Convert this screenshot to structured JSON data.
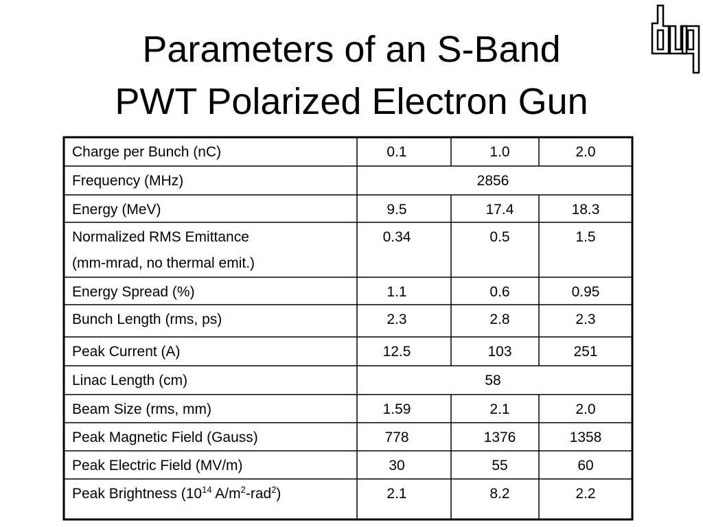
{
  "header": {
    "title_lines": [
      "Parameters of an S-Band",
      "PWT Polarized Electron Gun"
    ]
  },
  "table": {
    "rows": [
      {
        "label": [
          "Charge per Bunch (nC)"
        ],
        "values": [
          "0.1",
          "1.0",
          "2.0"
        ]
      },
      {
        "label": [
          "Frequency (MHz)"
        ],
        "values": [
          "2856"
        ]
      },
      {
        "label": [
          "Energy (MeV)"
        ],
        "values": [
          "9.5",
          "17.4",
          "18.3"
        ]
      },
      {
        "label": [
          "Normalized RMS Emittance",
          "(mm-mrad, no thermal emit.)"
        ],
        "values": [
          "0.34",
          "0.5",
          "1.5"
        ]
      },
      {
        "label": [
          "Energy Spread (%)"
        ],
        "values": [
          "1.1",
          "0.6",
          "0.95"
        ]
      },
      {
        "label": [
          "Bunch Length (rms, ps)"
        ],
        "values": [
          "2.3",
          "2.8",
          "2.3"
        ]
      },
      {
        "label": [
          "Peak Current (A)"
        ],
        "values": [
          "12.5",
          "103",
          "251"
        ]
      },
      {
        "label": [
          "Linac Length (cm)"
        ],
        "values": [
          "58"
        ]
      },
      {
        "label": [
          "Beam Size (rms, mm)"
        ],
        "values": [
          "1.59",
          "2.1",
          "2.0"
        ]
      },
      {
        "label": [
          "Peak Magnetic Field (Gauss)"
        ],
        "values": [
          "778",
          "1376",
          "1358"
        ]
      },
      {
        "label": [
          "Peak Electric Field (MV/m)"
        ],
        "values": [
          "30",
          "55",
          "60"
        ]
      },
      {
        "label_parts": [
          {
            "text": "Peak Brightness (10"
          },
          {
            "text": "14",
            "sup": true
          },
          {
            "text": "  A/m"
          },
          {
            "text": "2",
            "sup": true
          },
          {
            "text": "-rad"
          },
          {
            "text": "2",
            "sup": true
          },
          {
            "text": ")"
          }
        ],
        "values": [
          "2.1",
          "8.2",
          "2.2"
        ]
      }
    ]
  }
}
